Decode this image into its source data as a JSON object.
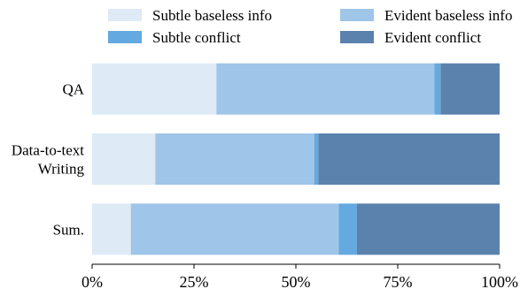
{
  "chart_data": {
    "type": "bar",
    "orientation": "horizontal",
    "stacked": true,
    "categories": [
      [
        "QA"
      ],
      [
        "Data-to-text",
        "Writing"
      ],
      [
        "Sum."
      ]
    ],
    "series": [
      {
        "name": "Subtle baseless info",
        "color": "#deeaf6",
        "values": [
          30.5,
          15.5,
          9.5
        ]
      },
      {
        "name": "Evident baseless info",
        "color": "#9fc5e8",
        "values": [
          53.5,
          39.0,
          51.0
        ]
      },
      {
        "name": "Subtle conflict",
        "color": "#64a9df",
        "values": [
          1.5,
          1.0,
          4.5
        ]
      },
      {
        "name": "Evident conflict",
        "color": "#5b82ad",
        "values": [
          14.5,
          44.5,
          35.0
        ]
      }
    ],
    "xlim": [
      0,
      100
    ],
    "xticks": [
      "0%",
      "25%",
      "50%",
      "75%",
      "100%"
    ],
    "xtick_values": [
      0,
      25,
      50,
      75,
      100
    ],
    "legend": {
      "placement": "top",
      "columns": 2
    },
    "grid": false
  }
}
